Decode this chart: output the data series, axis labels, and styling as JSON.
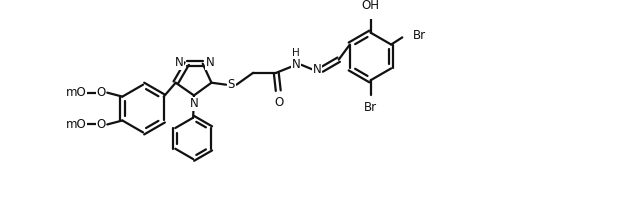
{
  "bg": "#ffffff",
  "lc": "#111111",
  "lw": 1.6,
  "fs": 8.5,
  "fw": 6.4,
  "fh": 2.02,
  "dpi": 100,
  "xlim": [
    0.0,
    12.5
  ],
  "ylim": [
    -1.9,
    2.7
  ]
}
